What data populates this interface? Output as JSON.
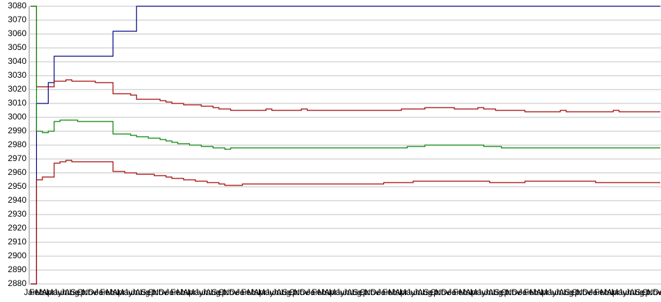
{
  "chart_data": {
    "type": "line",
    "categories": [
      "Jan",
      "Feb",
      "Mar",
      "Apr",
      "May",
      "Jun",
      "Jul",
      "Aug",
      "Sep",
      "Oct",
      "Nov",
      "Dec",
      "Jan",
      "Feb",
      "Mar",
      "Apr",
      "May",
      "Jun",
      "Jul",
      "Aug",
      "Sep",
      "Oct",
      "Nov",
      "Dec",
      "Jan",
      "Feb",
      "Mar",
      "Apr",
      "May",
      "Jun",
      "Jul",
      "Aug",
      "Sep",
      "Oct",
      "Nov",
      "Dec",
      "Jan",
      "Feb",
      "Mar",
      "Apr",
      "May",
      "Jun",
      "Jul",
      "Aug",
      "Sep",
      "Oct",
      "Nov",
      "Dec",
      "Jan",
      "Feb",
      "Mar",
      "Apr",
      "May",
      "Jun",
      "Jul",
      "Aug",
      "Sep",
      "Oct",
      "Nov",
      "Dec",
      "Jan",
      "Feb",
      "Mar",
      "Apr",
      "May",
      "Jun",
      "Jul",
      "Aug",
      "Sep",
      "Oct",
      "Nov",
      "Dec",
      "Jan",
      "Feb",
      "Mar",
      "Apr",
      "May",
      "Jun",
      "Jul",
      "Aug",
      "Sep",
      "Oct",
      "Nov",
      "Dec",
      "Jan",
      "Feb",
      "Mar",
      "Apr",
      "May",
      "Jun",
      "Jul",
      "Aug",
      "Sep",
      "Oct",
      "Nov",
      "Dec",
      "Jan",
      "Feb",
      "Mar",
      "Apr",
      "May",
      "Jun",
      "Jul",
      "Aug",
      "Sep",
      "Oct",
      "Nov",
      "Dec"
    ],
    "series": [
      {
        "color": "#000080",
        "values": [
          2880,
          3010,
          3010,
          3025,
          3044,
          3044,
          3044,
          3044,
          3044,
          3044,
          3044,
          3044,
          3044,
          3044,
          3062,
          3062,
          3062,
          3062,
          3080,
          3080,
          3080,
          3080,
          3080,
          3080,
          3080,
          3080,
          3080,
          3080,
          3080,
          3080,
          3080,
          3080,
          3080,
          3080,
          3080,
          3080,
          3080,
          3080,
          3080,
          3080,
          3080,
          3080,
          3080,
          3080,
          3080,
          3080,
          3080,
          3080,
          3080,
          3080,
          3080,
          3080,
          3080,
          3080,
          3080,
          3080,
          3080,
          3080,
          3080,
          3080,
          3080,
          3080,
          3080,
          3080,
          3080,
          3080,
          3080,
          3080,
          3080,
          3080,
          3080,
          3080,
          3080,
          3080,
          3080,
          3080,
          3080,
          3080,
          3080,
          3080,
          3080,
          3080,
          3080,
          3080,
          3080,
          3080,
          3080,
          3080,
          3080,
          3080,
          3080,
          3080,
          3080,
          3080,
          3080,
          3080,
          3080,
          3080,
          3080,
          3080,
          3080,
          3080,
          3080,
          3080,
          3080,
          3080,
          3080,
          3080
        ]
      },
      {
        "color": "#a00000",
        "values": [
          3080,
          3022,
          3022,
          3022,
          3026,
          3026,
          3027,
          3026,
          3026,
          3026,
          3026,
          3025,
          3025,
          3025,
          3017,
          3017,
          3017,
          3016,
          3013,
          3013,
          3013,
          3013,
          3012,
          3011,
          3010,
          3010,
          3009,
          3009,
          3009,
          3008,
          3008,
          3007,
          3006,
          3006,
          3005,
          3005,
          3005,
          3005,
          3005,
          3005,
          3006,
          3005,
          3005,
          3005,
          3005,
          3005,
          3006,
          3005,
          3005,
          3005,
          3005,
          3005,
          3005,
          3005,
          3005,
          3005,
          3005,
          3005,
          3005,
          3005,
          3005,
          3005,
          3005,
          3006,
          3006,
          3006,
          3006,
          3007,
          3007,
          3007,
          3007,
          3007,
          3006,
          3006,
          3006,
          3006,
          3007,
          3006,
          3006,
          3005,
          3005,
          3005,
          3005,
          3005,
          3004,
          3004,
          3004,
          3004,
          3004,
          3004,
          3005,
          3004,
          3004,
          3004,
          3004,
          3004,
          3004,
          3004,
          3004,
          3005,
          3004,
          3004,
          3004,
          3004,
          3004,
          3004,
          3004,
          3004
        ]
      },
      {
        "color": "#008000",
        "values": [
          3080,
          2990,
          2989,
          2990,
          2997,
          2998,
          2998,
          2998,
          2997,
          2997,
          2997,
          2997,
          2997,
          2997,
          2988,
          2988,
          2988,
          2987,
          2986,
          2986,
          2985,
          2985,
          2984,
          2983,
          2982,
          2981,
          2981,
          2980,
          2980,
          2979,
          2979,
          2978,
          2978,
          2977,
          2978,
          2978,
          2978,
          2978,
          2978,
          2978,
          2978,
          2978,
          2978,
          2978,
          2978,
          2978,
          2978,
          2978,
          2978,
          2978,
          2978,
          2978,
          2978,
          2978,
          2978,
          2978,
          2978,
          2978,
          2978,
          2978,
          2978,
          2978,
          2978,
          2978,
          2979,
          2979,
          2979,
          2980,
          2980,
          2980,
          2980,
          2980,
          2980,
          2980,
          2980,
          2980,
          2980,
          2979,
          2979,
          2979,
          2978,
          2978,
          2978,
          2978,
          2978,
          2978,
          2978,
          2978,
          2978,
          2978,
          2978,
          2978,
          2978,
          2978,
          2978,
          2978,
          2978,
          2978,
          2978,
          2978,
          2978,
          2978,
          2978,
          2978,
          2978,
          2978,
          2978,
          2978
        ]
      },
      {
        "color": "#a00000",
        "values": [
          2880,
          2955,
          2957,
          2957,
          2967,
          2968,
          2969,
          2968,
          2968,
          2968,
          2968,
          2968,
          2968,
          2968,
          2961,
          2961,
          2960,
          2960,
          2959,
          2959,
          2959,
          2958,
          2958,
          2957,
          2956,
          2956,
          2955,
          2955,
          2954,
          2954,
          2953,
          2953,
          2952,
          2951,
          2951,
          2951,
          2952,
          2952,
          2952,
          2952,
          2952,
          2952,
          2952,
          2952,
          2952,
          2952,
          2952,
          2952,
          2952,
          2952,
          2952,
          2952,
          2952,
          2952,
          2952,
          2952,
          2952,
          2952,
          2952,
          2952,
          2953,
          2953,
          2953,
          2953,
          2953,
          2954,
          2954,
          2954,
          2954,
          2954,
          2954,
          2954,
          2954,
          2954,
          2954,
          2954,
          2954,
          2954,
          2953,
          2953,
          2953,
          2953,
          2953,
          2953,
          2954,
          2954,
          2954,
          2954,
          2954,
          2954,
          2954,
          2954,
          2954,
          2954,
          2954,
          2954,
          2953,
          2953,
          2953,
          2953,
          2953,
          2953,
          2953,
          2953,
          2953,
          2953,
          2953,
          2953
        ]
      }
    ],
    "ylim": [
      2880,
      3080
    ],
    "yticks": [
      2880,
      2890,
      2900,
      2910,
      2920,
      2930,
      2940,
      2950,
      2960,
      2970,
      2980,
      2990,
      3000,
      3010,
      3020,
      3030,
      3040,
      3050,
      3060,
      3070,
      3080
    ],
    "grid": true
  }
}
